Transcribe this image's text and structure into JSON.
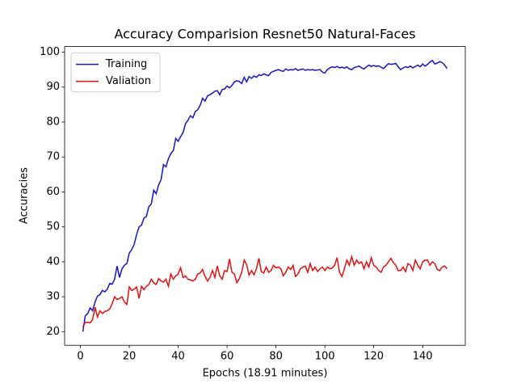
{
  "chart_data": {
    "type": "line",
    "title": "Accuracy Comparision Resnet50 Natural-Faces",
    "xlabel": "Epochs (18.91 minutes)",
    "ylabel": "Accuracies",
    "x": [
      1,
      2,
      3,
      4,
      5,
      6,
      7,
      8,
      9,
      10,
      11,
      12,
      13,
      14,
      15,
      16,
      17,
      18,
      19,
      20,
      21,
      22,
      23,
      24,
      25,
      26,
      27,
      28,
      29,
      30,
      31,
      32,
      33,
      34,
      35,
      36,
      37,
      38,
      39,
      40,
      41,
      42,
      43,
      44,
      45,
      46,
      47,
      48,
      49,
      50,
      51,
      52,
      53,
      54,
      55,
      56,
      57,
      58,
      59,
      60,
      61,
      62,
      63,
      64,
      65,
      66,
      67,
      68,
      69,
      70,
      71,
      72,
      73,
      74,
      75,
      76,
      77,
      78,
      79,
      80,
      81,
      82,
      83,
      84,
      85,
      86,
      87,
      88,
      89,
      90,
      91,
      92,
      93,
      94,
      95,
      96,
      97,
      98,
      99,
      100,
      101,
      102,
      103,
      104,
      105,
      106,
      107,
      108,
      109,
      110,
      111,
      112,
      113,
      114,
      115,
      116,
      117,
      118,
      119,
      120,
      121,
      122,
      123,
      124,
      125,
      126,
      127,
      128,
      129,
      130,
      131,
      132,
      133,
      134,
      135,
      136,
      137,
      138,
      139,
      140,
      141,
      142,
      143,
      144,
      145,
      146,
      147,
      148,
      149,
      150
    ],
    "series": [
      {
        "name": "Training",
        "color": "#1515c8",
        "values": [
          20.0,
          24.6,
          25.2,
          26.8,
          26.0,
          28.5,
          30.2,
          30.6,
          31.8,
          31.4,
          32.2,
          33.8,
          33.6,
          35.0,
          38.8,
          35.5,
          38.0,
          39.0,
          39.5,
          42.5,
          43.5,
          45.0,
          47.8,
          50.0,
          50.5,
          52.5,
          53.0,
          55.8,
          56.5,
          60.5,
          59.5,
          62.0,
          63.5,
          67.8,
          67.2,
          69.5,
          71.0,
          71.8,
          75.3,
          74.5,
          75.8,
          77.0,
          79.5,
          80.5,
          81.8,
          81.2,
          83.0,
          83.5,
          84.8,
          86.8,
          86.0,
          87.5,
          87.8,
          88.3,
          88.8,
          89.0,
          87.8,
          89.3,
          89.5,
          90.3,
          89.8,
          90.5,
          91.5,
          91.8,
          91.6,
          91.0,
          92.8,
          91.5,
          93.0,
          92.5,
          93.2,
          92.8,
          93.5,
          93.3,
          93.8,
          93.5,
          93.3,
          94.2,
          94.5,
          94.8,
          95.0,
          94.7,
          94.5,
          95.2,
          94.8,
          95.0,
          94.9,
          95.3,
          94.8,
          95.0,
          95.2,
          94.8,
          95.0,
          94.9,
          95.0,
          94.8,
          94.9,
          95.0,
          94.3,
          94.0,
          95.0,
          95.5,
          95.8,
          95.6,
          95.9,
          95.5,
          95.7,
          95.4,
          95.8,
          95.2,
          95.0,
          95.6,
          95.8,
          96.0,
          95.5,
          95.2,
          95.8,
          96.3,
          95.9,
          96.2,
          95.9,
          96.1,
          95.7,
          95.3,
          96.0,
          96.7,
          96.5,
          96.6,
          96.8,
          95.8,
          95.0,
          95.5,
          95.8,
          95.6,
          96.0,
          95.5,
          95.9,
          96.3,
          95.8,
          96.6,
          96.0,
          96.5,
          97.2,
          97.6,
          96.6,
          96.9,
          97.3,
          97.0,
          96.3,
          95.3
        ]
      },
      {
        "name": "Valiation",
        "color": "#e31010",
        "values": [
          21.5,
          22.6,
          22.7,
          22.5,
          23.5,
          27.0,
          24.2,
          26.0,
          25.2,
          25.8,
          26.0,
          26.5,
          28.0,
          30.0,
          29.2,
          29.5,
          30.0,
          28.5,
          27.8,
          32.8,
          31.8,
          32.2,
          32.8,
          29.5,
          33.0,
          32.0,
          33.0,
          33.5,
          35.0,
          34.0,
          33.5,
          35.2,
          34.5,
          34.2,
          35.0,
          33.0,
          36.5,
          35.0,
          36.0,
          36.5,
          38.3,
          35.5,
          36.0,
          35.0,
          34.8,
          34.5,
          35.0,
          36.5,
          36.8,
          37.8,
          35.8,
          34.5,
          35.5,
          37.5,
          35.5,
          38.8,
          36.0,
          35.0,
          37.5,
          37.2,
          40.8,
          37.0,
          36.5,
          34.0,
          35.2,
          37.0,
          40.5,
          39.2,
          36.2,
          37.5,
          36.3,
          38.0,
          41.0,
          37.2,
          36.8,
          38.5,
          37.0,
          37.5,
          39.0,
          38.3,
          38.5,
          38.0,
          36.0,
          37.0,
          38.5,
          37.8,
          39.0,
          35.8,
          36.5,
          38.0,
          38.5,
          38.8,
          37.0,
          39.5,
          37.5,
          38.5,
          37.2,
          38.0,
          38.5,
          37.5,
          38.5,
          38.0,
          38.2,
          39.0,
          41.2,
          37.0,
          35.8,
          38.0,
          40.5,
          39.0,
          41.5,
          39.0,
          40.5,
          39.5,
          40.0,
          38.0,
          40.0,
          38.5,
          41.2,
          39.0,
          38.5,
          37.5,
          37.0,
          38.5,
          39.0,
          40.0,
          41.0,
          39.8,
          39.0,
          37.5,
          37.5,
          38.5,
          37.2,
          39.5,
          39.0,
          37.5,
          40.5,
          39.0,
          38.0,
          40.0,
          40.5,
          40.5,
          39.0,
          40.0,
          39.5,
          37.8,
          37.5,
          38.5,
          38.8,
          38.0
        ]
      }
    ],
    "xlim": [
      -6.45,
      157.45
    ],
    "xticks": [
      0,
      20,
      40,
      60,
      80,
      100,
      120,
      140
    ],
    "ylim": [
      16.1,
      101.6
    ],
    "yticks": [
      20,
      30,
      40,
      50,
      60,
      70,
      80,
      90,
      100
    ],
    "legend": "upper left"
  }
}
